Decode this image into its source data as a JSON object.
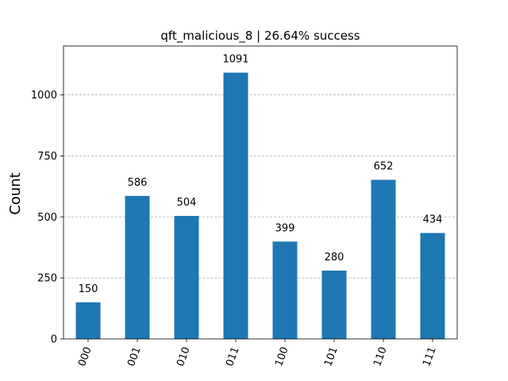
{
  "chart_data": {
    "type": "bar",
    "title": "qft_malicious_8 | 26.64% success",
    "xlabel": "",
    "ylabel": "Count",
    "categories": [
      "000",
      "001",
      "010",
      "011",
      "100",
      "101",
      "110",
      "111"
    ],
    "values": [
      150,
      586,
      504,
      1091,
      399,
      280,
      652,
      434
    ],
    "ylim": [
      0,
      1200
    ],
    "yticks": [
      0,
      250,
      500,
      750,
      1000
    ],
    "grid": "y",
    "bar_color": "#1f77b4",
    "grid_color": "#b0b0b0"
  }
}
